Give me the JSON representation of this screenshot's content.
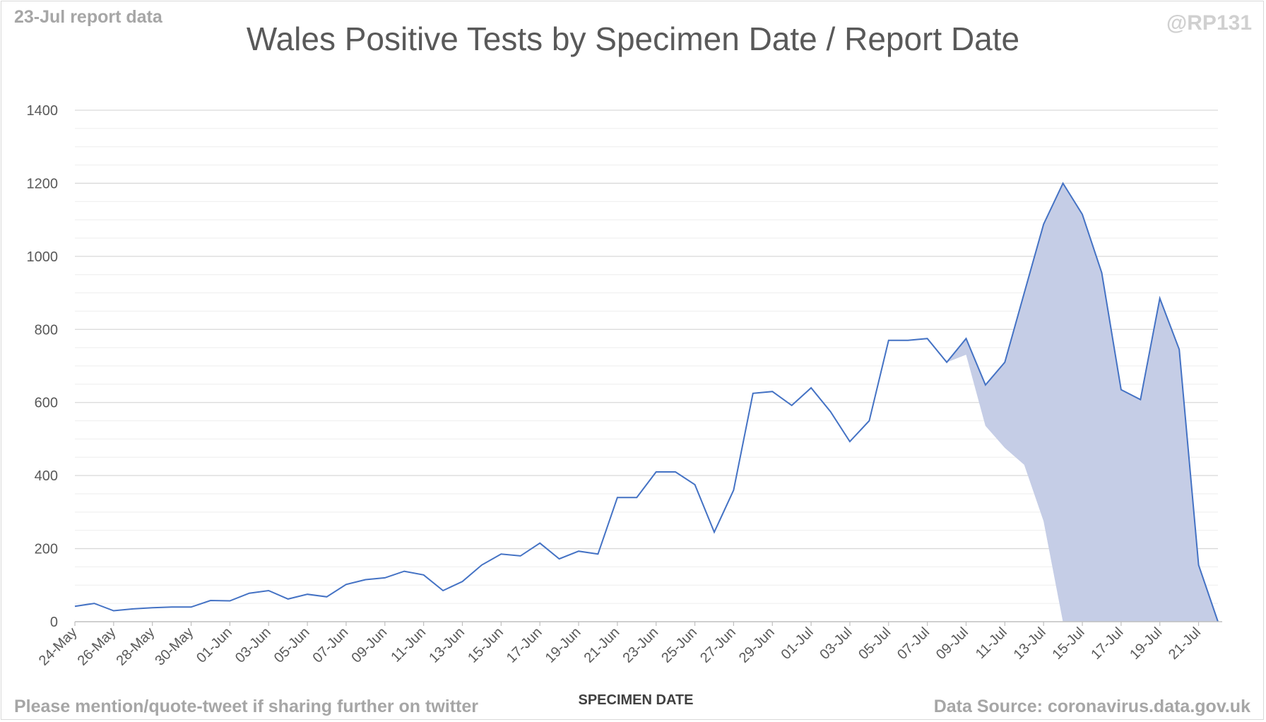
{
  "header": {
    "report_note": "23-Jul report data",
    "handle": "@RP131"
  },
  "footer": {
    "left": "Please mention/quote-tweet if sharing further on twitter",
    "right": "Data Source: coronavirus.data.gov.uk"
  },
  "colors": {
    "palette": [
      "#4472c4",
      "#3b62b0",
      "#264478",
      "#c5cde6",
      "#9fb0db",
      "#6d87cc"
    ],
    "grid_major": "#d9d9d9",
    "grid_minor": "#eeeeee",
    "axis": "#bfbfbf"
  },
  "chart_data": {
    "type": "area",
    "subtype": "stacked area by report date (layers not individually labelled)",
    "title": "Wales Positive Tests by Specimen Date / Report Date",
    "xlabel": "SPECIMEN DATE",
    "ylabel": "",
    "ylim": [
      0,
      1400
    ],
    "yticks": [
      0,
      200,
      400,
      600,
      800,
      1000,
      1200,
      1400
    ],
    "grid": true,
    "legend": "none",
    "x": [
      "24-May",
      "25-May",
      "26-May",
      "27-May",
      "28-May",
      "29-May",
      "30-May",
      "31-May",
      "01-Jun",
      "02-Jun",
      "03-Jun",
      "04-Jun",
      "05-Jun",
      "06-Jun",
      "07-Jun",
      "08-Jun",
      "09-Jun",
      "10-Jun",
      "11-Jun",
      "12-Jun",
      "13-Jun",
      "14-Jun",
      "15-Jun",
      "16-Jun",
      "17-Jun",
      "18-Jun",
      "19-Jun",
      "20-Jun",
      "21-Jun",
      "22-Jun",
      "23-Jun",
      "24-Jun",
      "25-Jun",
      "26-Jun",
      "27-Jun",
      "28-Jun",
      "29-Jun",
      "30-Jun",
      "01-Jul",
      "02-Jul",
      "03-Jul",
      "04-Jul",
      "05-Jul",
      "06-Jul",
      "07-Jul",
      "08-Jul",
      "09-Jul",
      "10-Jul",
      "11-Jul",
      "12-Jul",
      "13-Jul",
      "14-Jul",
      "15-Jul",
      "16-Jul",
      "17-Jul",
      "18-Jul",
      "19-Jul",
      "20-Jul",
      "21-Jul",
      "22-Jul"
    ],
    "xtick_labels": [
      "24-May",
      "26-May",
      "28-May",
      "30-May",
      "01-Jun",
      "03-Jun",
      "05-Jun",
      "07-Jun",
      "09-Jun",
      "11-Jun",
      "13-Jun",
      "15-Jun",
      "17-Jun",
      "19-Jun",
      "21-Jun",
      "23-Jun",
      "25-Jun",
      "27-Jun",
      "29-Jun",
      "01-Jul",
      "03-Jul",
      "05-Jul",
      "07-Jul",
      "09-Jul",
      "11-Jul",
      "13-Jul",
      "15-Jul",
      "17-Jul",
      "19-Jul",
      "21-Jul"
    ],
    "series": [
      {
        "values": [
          42,
          50,
          30,
          35,
          38,
          40,
          40,
          58,
          57,
          78,
          85,
          62,
          75,
          68,
          102,
          115,
          120,
          138,
          128,
          85,
          110,
          155,
          185,
          180,
          215,
          172,
          193,
          185,
          340,
          340,
          410,
          410,
          375,
          245,
          360,
          625,
          630,
          592,
          640,
          575,
          493,
          550,
          770,
          770,
          775,
          710,
          775,
          648,
          710,
          900,
          1088,
          1200,
          1115,
          955,
          635,
          608,
          885,
          745,
          155,
          0
        ]
      }
    ]
  }
}
